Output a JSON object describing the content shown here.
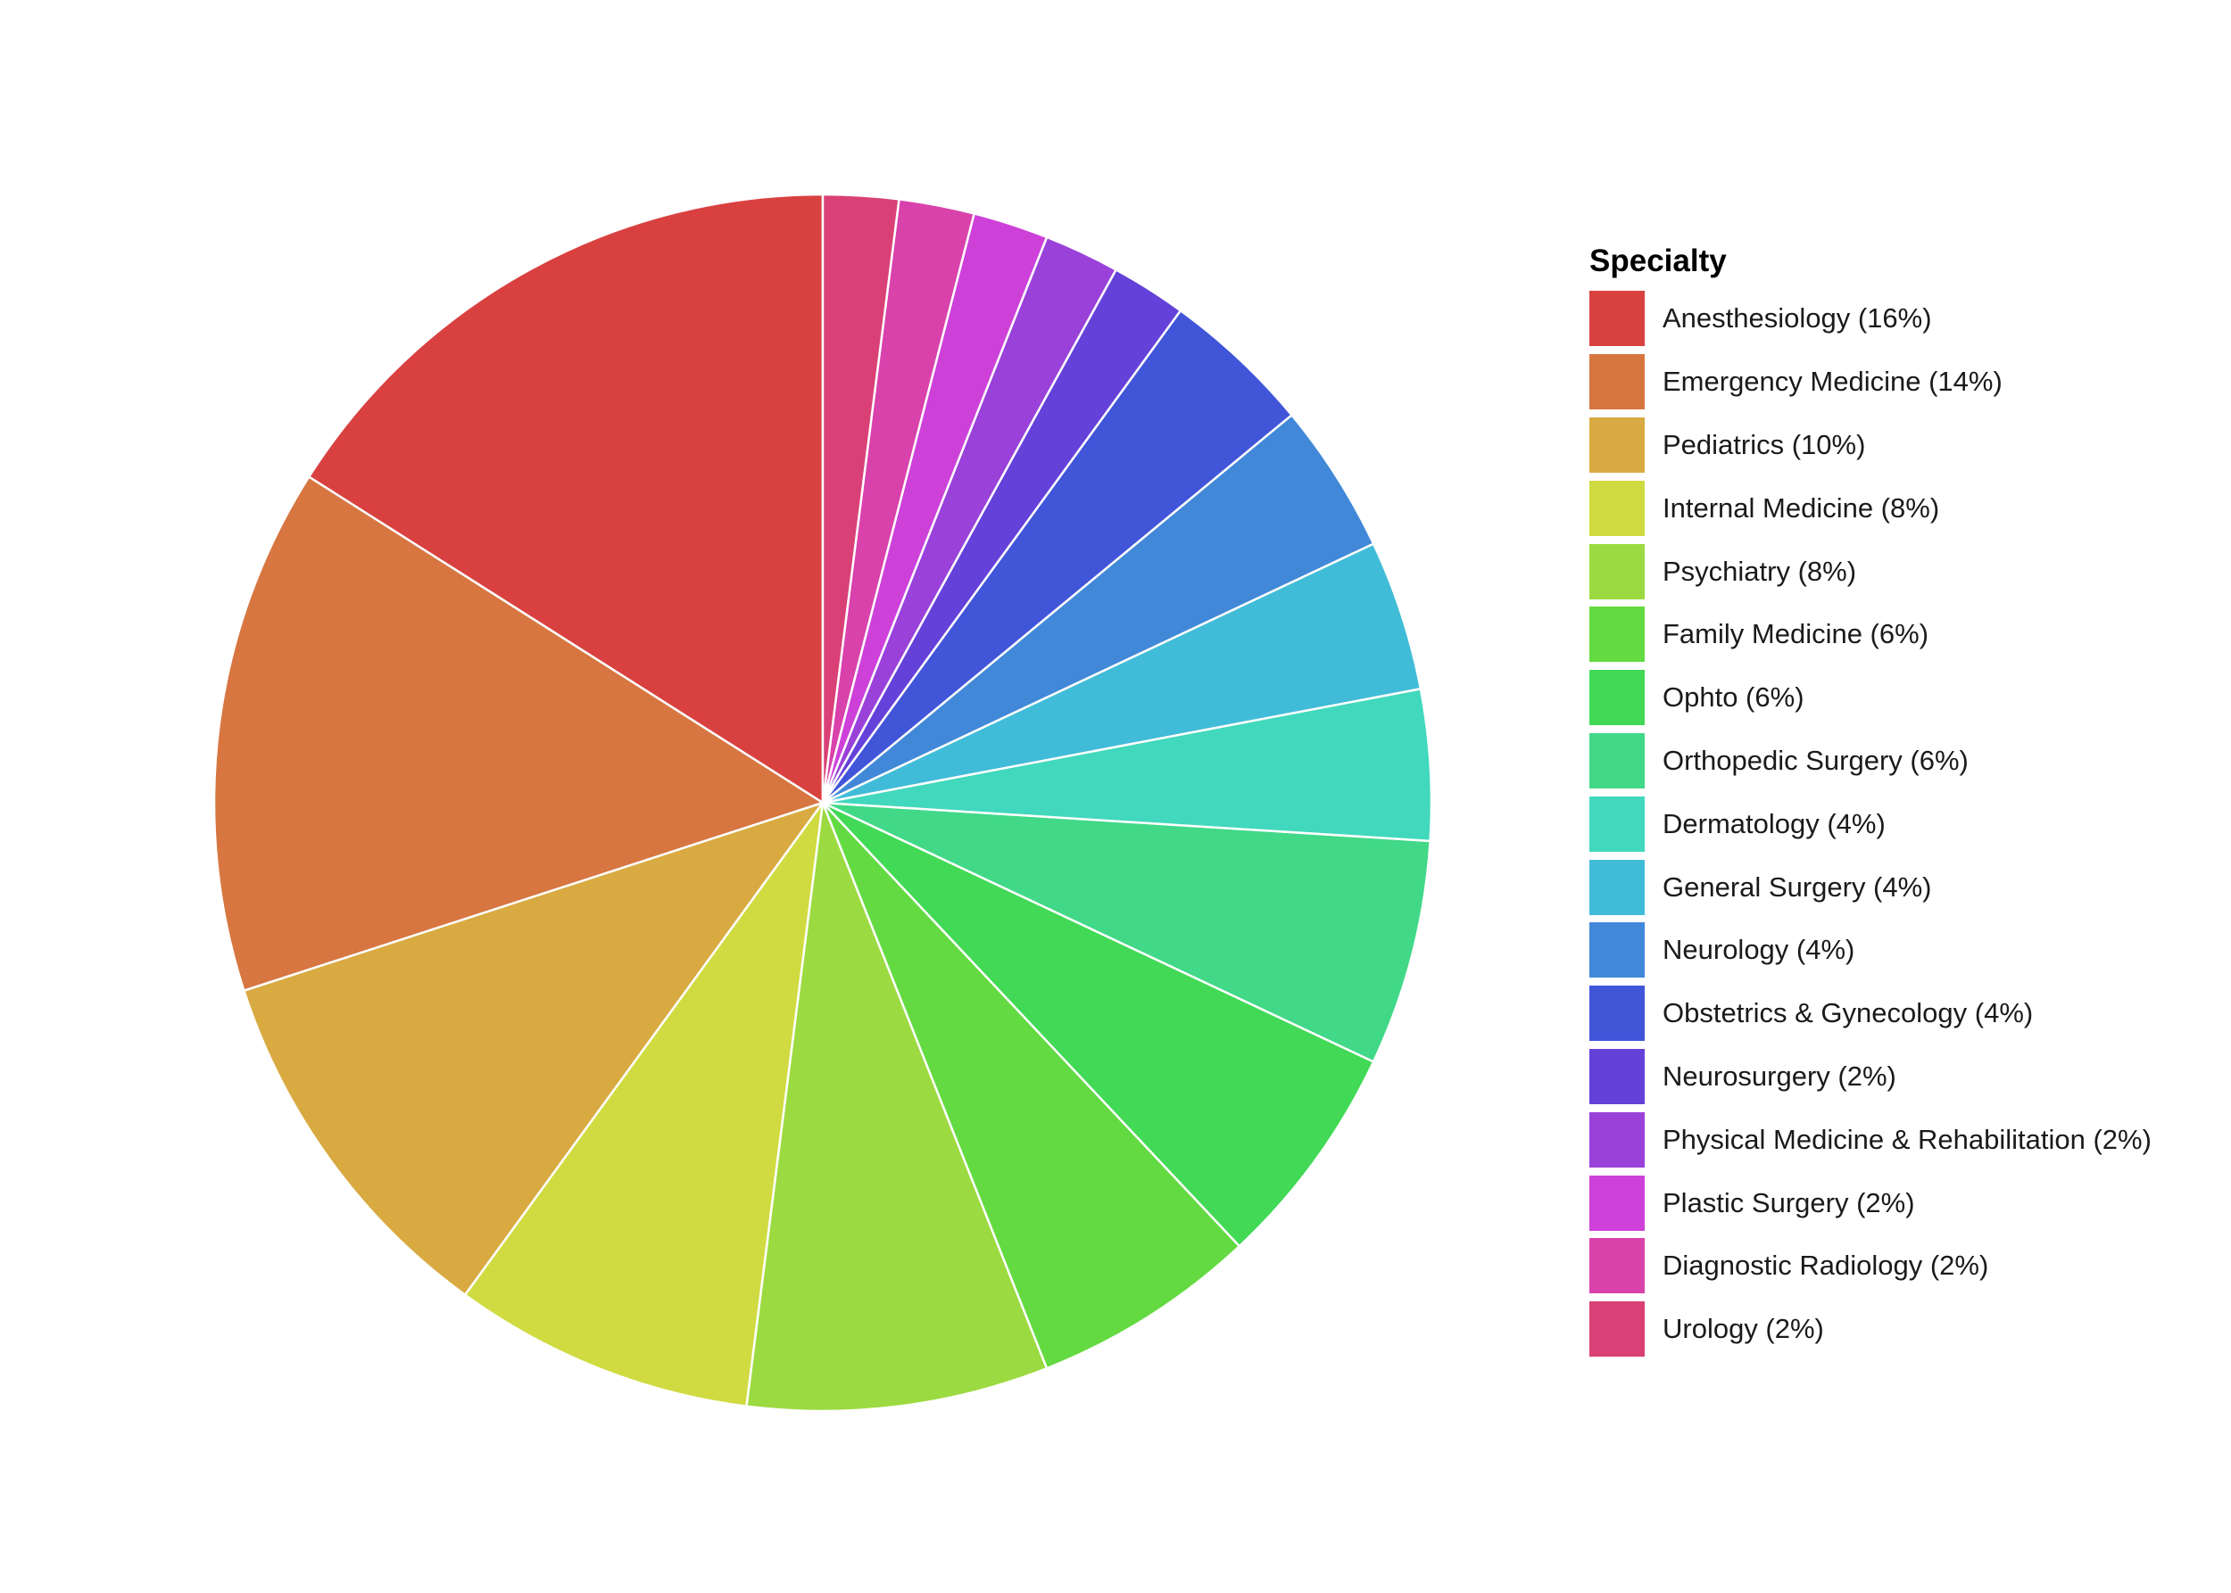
{
  "chart_data": {
    "type": "pie",
    "legend_title": "Specialty",
    "legend_position": "right",
    "slices": [
      {
        "label": "Anesthesiology (16%)",
        "value": 16,
        "color": "#d94141"
      },
      {
        "label": "Emergency Medicine (14%)",
        "value": 14,
        "color": "#d77641"
      },
      {
        "label": "Pediatrics (10%)",
        "value": 10,
        "color": "#d8aa41"
      },
      {
        "label": "Internal Medicine (8%)",
        "value": 8,
        "color": "#d0db41"
      },
      {
        "label": "Psychiatry (8%)",
        "value": 8,
        "color": "#9cda41"
      },
      {
        "label": "Family Medicine (6%)",
        "value": 6,
        "color": "#63da41"
      },
      {
        "label": "Ophto (6%)",
        "value": 6,
        "color": "#41d955"
      },
      {
        "label": "Orthopedic Surgery (6%)",
        "value": 6,
        "color": "#41d887"
      },
      {
        "label": "Dermatology (4%)",
        "value": 4,
        "color": "#41d8bd"
      },
      {
        "label": "General Surgery (4%)",
        "value": 4,
        "color": "#41bcd8"
      },
      {
        "label": "Neurology (4%)",
        "value": 4,
        "color": "#4188d8"
      },
      {
        "label": "Obstetrics & Gynecology (4%)",
        "value": 4,
        "color": "#4155d9"
      },
      {
        "label": "Neurosurgery (2%)",
        "value": 2,
        "color": "#6441d9"
      },
      {
        "label": "Physical Medicine & Rehabilitation (2%)",
        "value": 2,
        "color": "#9941d9"
      },
      {
        "label": "Plastic Surgery (2%)",
        "value": 2,
        "color": "#cd41d9"
      },
      {
        "label": "Diagnostic Radiology (2%)",
        "value": 2,
        "color": "#d941ab"
      },
      {
        "label": "Urology (2%)",
        "value": 2,
        "color": "#d94176"
      }
    ]
  }
}
